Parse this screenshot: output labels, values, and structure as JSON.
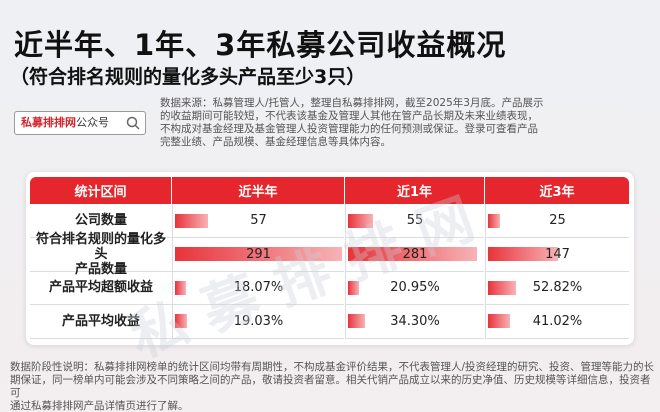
{
  "header": {
    "title": "近半年、1年、3年私募公司收益概况",
    "subtitle": "（符合排名规则的量化多头产品至少3只）"
  },
  "search": {
    "brand": "私募排排网",
    "suffix": "公众号"
  },
  "source": [
    "数据来源：私募管理人/托管人，整理自私募排排网，截至2025年3月底。产品展示",
    "的收益期间可能较短，不代表该基金及管理人其他在管产品长期及未来业绩表现，",
    "不构成对基金经理及基金管理人投资管理能力的任何预测或保证。登录可查看产品",
    "完整业绩、产品规模、基金经理信息等具体内容。"
  ],
  "table": {
    "columns": [
      "统计区间",
      "近半年",
      "近1年",
      "近3年"
    ],
    "rows": [
      {
        "label": [
          "公司数量"
        ],
        "values": [
          57,
          55,
          25
        ]
      },
      {
        "label": [
          "符合排名规则的量化多头",
          "产品数量"
        ],
        "values": [
          291,
          281,
          147
        ]
      },
      {
        "label": [
          "产品平均超额收益"
        ],
        "values": [
          18.07,
          20.95,
          52.82
        ],
        "value_labels": [
          "18.07%",
          "20.95%",
          "52.82%"
        ]
      },
      {
        "label": [
          "产品平均收益"
        ],
        "values": [
          19.03,
          34.3,
          41.02
        ],
        "value_labels": [
          "19.03%",
          "34.30%",
          "41.02%"
        ]
      }
    ]
  },
  "watermark": "私募排排网",
  "footnote": [
    "数据阶段性说明：私募排排网榜单的统计区间均带有周期性，不构成基金评价结果，不代表管理人/投资经理的研究、投资、管理等能力的长",
    "期保证，同一榜单内可能会涉及不同策略之间的产品，敬请投资者留意。相关代销产品成立以来的历史净值、历史规模等详细信息，投资者可",
    "通过私募排排网产品详情页进行了解。"
  ]
}
